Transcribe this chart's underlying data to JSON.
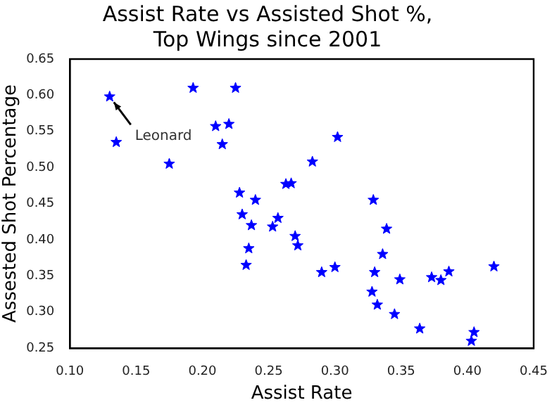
{
  "chart_data": {
    "type": "scatter",
    "title": "Assist Rate vs Assisted Shot %,\nTop Wings since 2001",
    "xlabel": "Assist Rate",
    "ylabel": "Assested Shot Percentage",
    "marker": "star",
    "grid": false,
    "legend": false,
    "xlim": [
      0.1,
      0.45
    ],
    "ylim": [
      0.25,
      0.65
    ],
    "xticks": [
      {
        "value": 0.1,
        "label": "0.10"
      },
      {
        "value": 0.15,
        "label": "0.15"
      },
      {
        "value": 0.2,
        "label": "0.20"
      },
      {
        "value": 0.25,
        "label": "0.25"
      },
      {
        "value": 0.3,
        "label": "0.30"
      },
      {
        "value": 0.35,
        "label": "0.35"
      },
      {
        "value": 0.4,
        "label": "0.40"
      },
      {
        "value": 0.45,
        "label": "0.45"
      }
    ],
    "yticks": [
      {
        "value": 0.25,
        "label": "0.25"
      },
      {
        "value": 0.3,
        "label": "0.30"
      },
      {
        "value": 0.35,
        "label": "0.35"
      },
      {
        "value": 0.4,
        "label": "0.40"
      },
      {
        "value": 0.45,
        "label": "0.45"
      },
      {
        "value": 0.5,
        "label": "0.50"
      },
      {
        "value": 0.55,
        "label": "0.55"
      },
      {
        "value": 0.6,
        "label": "0.60"
      },
      {
        "value": 0.65,
        "label": "0.65"
      }
    ],
    "annotations": [
      {
        "text": "Leonard",
        "x": 0.13,
        "y": 0.598
      }
    ],
    "series": [
      {
        "color": "#0000ff",
        "x": [
          0.13,
          0.135,
          0.175,
          0.193,
          0.21,
          0.215,
          0.22,
          0.225,
          0.228,
          0.23,
          0.233,
          0.235,
          0.237,
          0.24,
          0.253,
          0.257,
          0.263,
          0.267,
          0.27,
          0.272,
          0.283,
          0.29,
          0.3,
          0.302,
          0.328,
          0.329,
          0.33,
          0.332,
          0.336,
          0.339,
          0.345,
          0.349,
          0.364,
          0.373,
          0.38,
          0.386,
          0.403,
          0.405,
          0.42
        ],
        "values": [
          0.598,
          0.535,
          0.505,
          0.61,
          0.557,
          0.532,
          0.56,
          0.61,
          0.465,
          0.435,
          0.365,
          0.388,
          0.42,
          0.455,
          0.418,
          0.43,
          0.477,
          0.478,
          0.405,
          0.392,
          0.508,
          0.355,
          0.362,
          0.542,
          0.328,
          0.455,
          0.355,
          0.31,
          0.38,
          0.415,
          0.297,
          0.345,
          0.277,
          0.348,
          0.344,
          0.356,
          0.26,
          0.272,
          0.363
        ]
      }
    ]
  }
}
